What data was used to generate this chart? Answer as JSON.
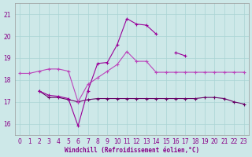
{
  "xlabel": "Windchill (Refroidissement éolien,°C)",
  "ylabel": "",
  "background_color": "#cde8e8",
  "grid_color": "#aad4d4",
  "line1_color": "#bb44bb",
  "line2_color": "#990099",
  "line3_color": "#660066",
  "x": [
    0,
    1,
    2,
    3,
    4,
    5,
    6,
    7,
    8,
    9,
    10,
    11,
    12,
    13,
    14,
    15,
    16,
    17,
    18,
    19,
    20,
    21,
    22,
    23
  ],
  "line1_y": [
    18.3,
    18.3,
    18.4,
    18.5,
    18.5,
    18.4,
    17.0,
    17.8,
    18.1,
    18.4,
    18.7,
    19.3,
    18.85,
    18.85,
    18.35,
    18.35,
    18.35,
    18.35,
    18.35,
    18.35,
    18.35,
    18.35,
    18.35,
    18.35
  ],
  "line2_y": [
    null,
    null,
    17.5,
    17.3,
    17.25,
    17.15,
    15.9,
    17.5,
    18.75,
    18.8,
    19.6,
    20.8,
    20.55,
    20.5,
    20.1,
    null,
    19.25,
    19.1,
    null,
    null,
    null,
    null,
    null,
    null
  ],
  "line3_y": [
    null,
    null,
    17.5,
    17.2,
    17.2,
    17.1,
    17.0,
    17.1,
    17.15,
    17.15,
    17.15,
    17.15,
    17.15,
    17.15,
    17.15,
    17.15,
    17.15,
    17.15,
    17.15,
    17.2,
    17.2,
    17.15,
    17.0,
    16.9
  ],
  "xlim": [
    -0.5,
    23.5
  ],
  "ylim": [
    15.5,
    21.5
  ],
  "yticks": [
    16,
    17,
    18,
    19,
    20,
    21
  ],
  "xticks": [
    0,
    1,
    2,
    3,
    4,
    5,
    6,
    7,
    8,
    9,
    10,
    11,
    12,
    13,
    14,
    15,
    16,
    17,
    18,
    19,
    20,
    21,
    22,
    23
  ],
  "tick_fontsize": 5.5,
  "xlabel_fontsize": 5.5,
  "marker_size": 3,
  "linewidth": 0.8
}
